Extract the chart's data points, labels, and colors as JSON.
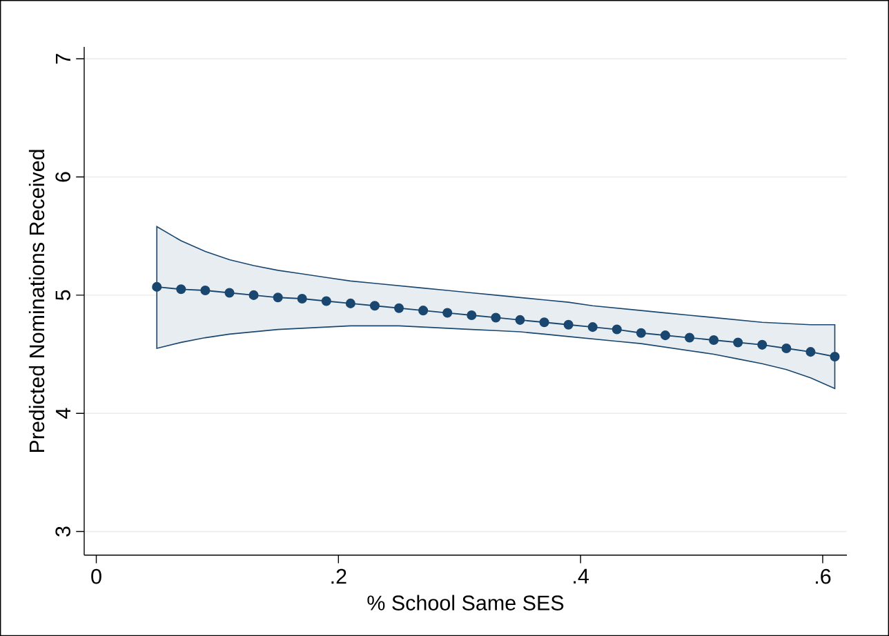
{
  "chart_data": {
    "type": "line",
    "xlabel": "% School Same SES",
    "ylabel": "Predicted Nominations Received",
    "x": [
      0.05,
      0.07,
      0.09,
      0.11,
      0.13,
      0.15,
      0.17,
      0.19,
      0.21,
      0.23,
      0.25,
      0.27,
      0.29,
      0.31,
      0.33,
      0.35,
      0.37,
      0.39,
      0.41,
      0.43,
      0.45,
      0.47,
      0.49,
      0.51,
      0.53,
      0.55,
      0.57,
      0.59,
      0.61
    ],
    "series": [
      {
        "color": "#1a476f",
        "values": [
          5.07,
          5.05,
          5.04,
          5.02,
          5.0,
          4.98,
          4.97,
          4.95,
          4.93,
          4.91,
          4.89,
          4.87,
          4.85,
          4.83,
          4.81,
          4.79,
          4.77,
          4.75,
          4.73,
          4.71,
          4.68,
          4.66,
          4.64,
          4.62,
          4.6,
          4.58,
          4.55,
          4.52,
          4.48
        ],
        "upper": [
          5.58,
          5.46,
          5.37,
          5.3,
          5.25,
          5.21,
          5.18,
          5.15,
          5.12,
          5.1,
          5.08,
          5.06,
          5.04,
          5.02,
          5.0,
          4.98,
          4.96,
          4.94,
          4.91,
          4.89,
          4.87,
          4.85,
          4.83,
          4.81,
          4.79,
          4.77,
          4.76,
          4.75,
          4.75
        ],
        "lower": [
          4.55,
          4.6,
          4.64,
          4.67,
          4.69,
          4.71,
          4.72,
          4.73,
          4.74,
          4.74,
          4.74,
          4.73,
          4.72,
          4.71,
          4.7,
          4.69,
          4.67,
          4.65,
          4.63,
          4.61,
          4.59,
          4.56,
          4.53,
          4.5,
          4.46,
          4.42,
          4.37,
          4.3,
          4.21
        ]
      }
    ],
    "xlim": [
      -0.01,
      0.62
    ],
    "ylim": [
      2.8,
      7.1
    ],
    "xticks": [
      0,
      {
        "value": 0.2,
        "label": ".2"
      },
      {
        "value": 0.4,
        "label": ".4"
      },
      {
        "value": 0.6,
        "label": ".6"
      }
    ],
    "yticks": [
      3,
      4,
      5,
      6,
      7
    ],
    "grid": "y",
    "marker": "circle",
    "line_style": "solid"
  }
}
